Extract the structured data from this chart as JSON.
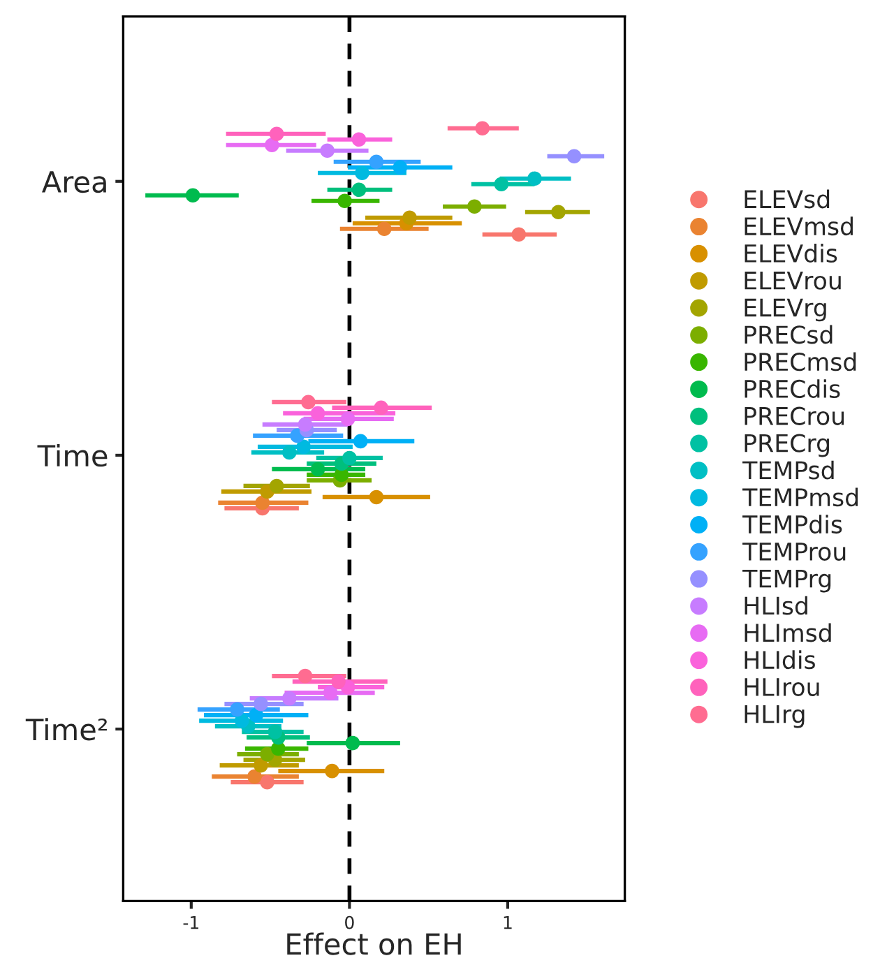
{
  "chart_data": {
    "type": "scatter",
    "orientation": "horizontal",
    "xlabel": "Effect on EH",
    "categories": [
      "Area",
      "Time",
      "Time²"
    ],
    "xlim": [
      -1.43,
      1.74
    ],
    "xticks": [
      -1,
      0,
      1
    ],
    "grid": false,
    "legend": "right",
    "marker": "circle",
    "ref_lines": [
      {
        "axis": "x",
        "value": 0,
        "color": "#000000",
        "line_style": "dashed"
      }
    ],
    "series": [
      {
        "name": "ELEVsd",
        "color": "#F8766D",
        "values": [
          1.07,
          -0.55,
          -0.52
        ],
        "errors": [
          [
            0.84,
            1.31
          ],
          [
            -0.79,
            -0.32
          ],
          [
            -0.75,
            -0.29
          ]
        ]
      },
      {
        "name": "ELEVmsd",
        "color": "#EA8331",
        "values": [
          0.22,
          -0.55,
          -0.6
        ],
        "errors": [
          [
            -0.06,
            0.5
          ],
          [
            -0.83,
            -0.26
          ],
          [
            -0.87,
            -0.32
          ]
        ]
      },
      {
        "name": "ELEVdis",
        "color": "#D89000",
        "values": [
          0.36,
          0.17,
          -0.11
        ],
        "errors": [
          [
            0.02,
            0.71
          ],
          [
            -0.17,
            0.51
          ],
          [
            -0.45,
            0.22
          ]
        ]
      },
      {
        "name": "ELEVrou",
        "color": "#C09B00",
        "values": [
          0.38,
          -0.52,
          -0.56
        ],
        "errors": [
          [
            0.1,
            0.65
          ],
          [
            -0.81,
            -0.24
          ],
          [
            -0.82,
            -0.32
          ]
        ]
      },
      {
        "name": "ELEVrg",
        "color": "#A3A500",
        "values": [
          1.32,
          -0.46,
          -0.47
        ],
        "errors": [
          [
            1.11,
            1.52
          ],
          [
            -0.67,
            -0.25
          ],
          [
            -0.67,
            -0.28
          ]
        ]
      },
      {
        "name": "PRECsd",
        "color": "#7CAE00",
        "values": [
          0.79,
          -0.06,
          -0.52
        ],
        "errors": [
          [
            0.59,
            0.99
          ],
          [
            -0.27,
            0.14
          ],
          [
            -0.71,
            -0.32
          ]
        ]
      },
      {
        "name": "PRECmsd",
        "color": "#39B600",
        "values": [
          -0.03,
          -0.05,
          -0.45
        ],
        "errors": [
          [
            -0.24,
            0.19
          ],
          [
            -0.27,
            0.1
          ],
          [
            -0.66,
            -0.26
          ]
        ]
      },
      {
        "name": "PRECdis",
        "color": "#00BB4E",
        "values": [
          -0.99,
          -0.2,
          0.02
        ],
        "errors": [
          [
            -1.29,
            -0.7
          ],
          [
            -0.49,
            0.1
          ],
          [
            -0.27,
            0.32
          ]
        ]
      },
      {
        "name": "PRECrou",
        "color": "#00BF7D",
        "values": [
          0.06,
          -0.05,
          -0.45
        ],
        "errors": [
          [
            -0.14,
            0.27
          ],
          [
            -0.27,
            0.17
          ],
          [
            -0.65,
            -0.25
          ]
        ]
      },
      {
        "name": "PRECrg",
        "color": "#00C1A3",
        "values": [
          0.96,
          0.0,
          -0.47
        ],
        "errors": [
          [
            0.77,
            1.17
          ],
          [
            -0.21,
            0.21
          ],
          [
            -0.68,
            -0.29
          ]
        ]
      },
      {
        "name": "TEMPsd",
        "color": "#00BFC4",
        "values": [
          1.17,
          -0.38,
          -0.64
        ],
        "errors": [
          [
            0.95,
            1.4
          ],
          [
            -0.62,
            -0.16
          ],
          [
            -0.85,
            -0.43
          ]
        ]
      },
      {
        "name": "TEMPmsd",
        "color": "#00BAE0",
        "values": [
          0.08,
          -0.29,
          -0.68
        ],
        "errors": [
          [
            -0.2,
            0.36
          ],
          [
            -0.58,
            0.02
          ],
          [
            -0.95,
            -0.42
          ]
        ]
      },
      {
        "name": "TEMPdis",
        "color": "#00B0F6",
        "values": [
          0.32,
          0.07,
          -0.59
        ],
        "errors": [
          [
            -0.01,
            0.65
          ],
          [
            -0.26,
            0.41
          ],
          [
            -0.92,
            -0.26
          ]
        ]
      },
      {
        "name": "TEMProu",
        "color": "#35A2FF",
        "values": [
          0.17,
          -0.33,
          -0.71
        ],
        "errors": [
          [
            -0.1,
            0.45
          ],
          [
            -0.61,
            -0.04
          ],
          [
            -0.96,
            -0.44
          ]
        ]
      },
      {
        "name": "TEMPrg",
        "color": "#9590FF",
        "values": [
          1.42,
          -0.27,
          -0.56
        ],
        "errors": [
          [
            1.25,
            1.61
          ],
          [
            -0.46,
            -0.08
          ],
          [
            -0.79,
            -0.29
          ]
        ]
      },
      {
        "name": "HLIsd",
        "color": "#C77CFF",
        "values": [
          -0.14,
          -0.28,
          -0.38
        ],
        "errors": [
          [
            -0.4,
            0.12
          ],
          [
            -0.55,
            -0.01
          ],
          [
            -0.63,
            -0.07
          ]
        ]
      },
      {
        "name": "HLImsd",
        "color": "#E76BF3",
        "values": [
          -0.49,
          -0.01,
          -0.12
        ],
        "errors": [
          [
            -0.78,
            -0.21
          ],
          [
            -0.29,
            0.28
          ],
          [
            -0.41,
            0.16
          ]
        ]
      },
      {
        "name": "HLIdis",
        "color": "#FA62DB",
        "values": [
          0.06,
          -0.2,
          -0.01
        ],
        "errors": [
          [
            -0.14,
            0.27
          ],
          [
            -0.42,
            0.29
          ],
          [
            -0.2,
            0.22
          ]
        ]
      },
      {
        "name": "HLIrou",
        "color": "#FF62BC",
        "values": [
          -0.46,
          0.2,
          -0.07
        ],
        "errors": [
          [
            -0.78,
            -0.15
          ],
          [
            -0.11,
            0.52
          ],
          [
            -0.36,
            0.24
          ]
        ]
      },
      {
        "name": "HLIrg",
        "color": "#FF6C91",
        "values": [
          0.84,
          -0.26,
          -0.28
        ],
        "errors": [
          [
            0.62,
            1.07
          ],
          [
            -0.49,
            -0.02
          ],
          [
            -0.49,
            -0.02
          ]
        ]
      }
    ]
  }
}
